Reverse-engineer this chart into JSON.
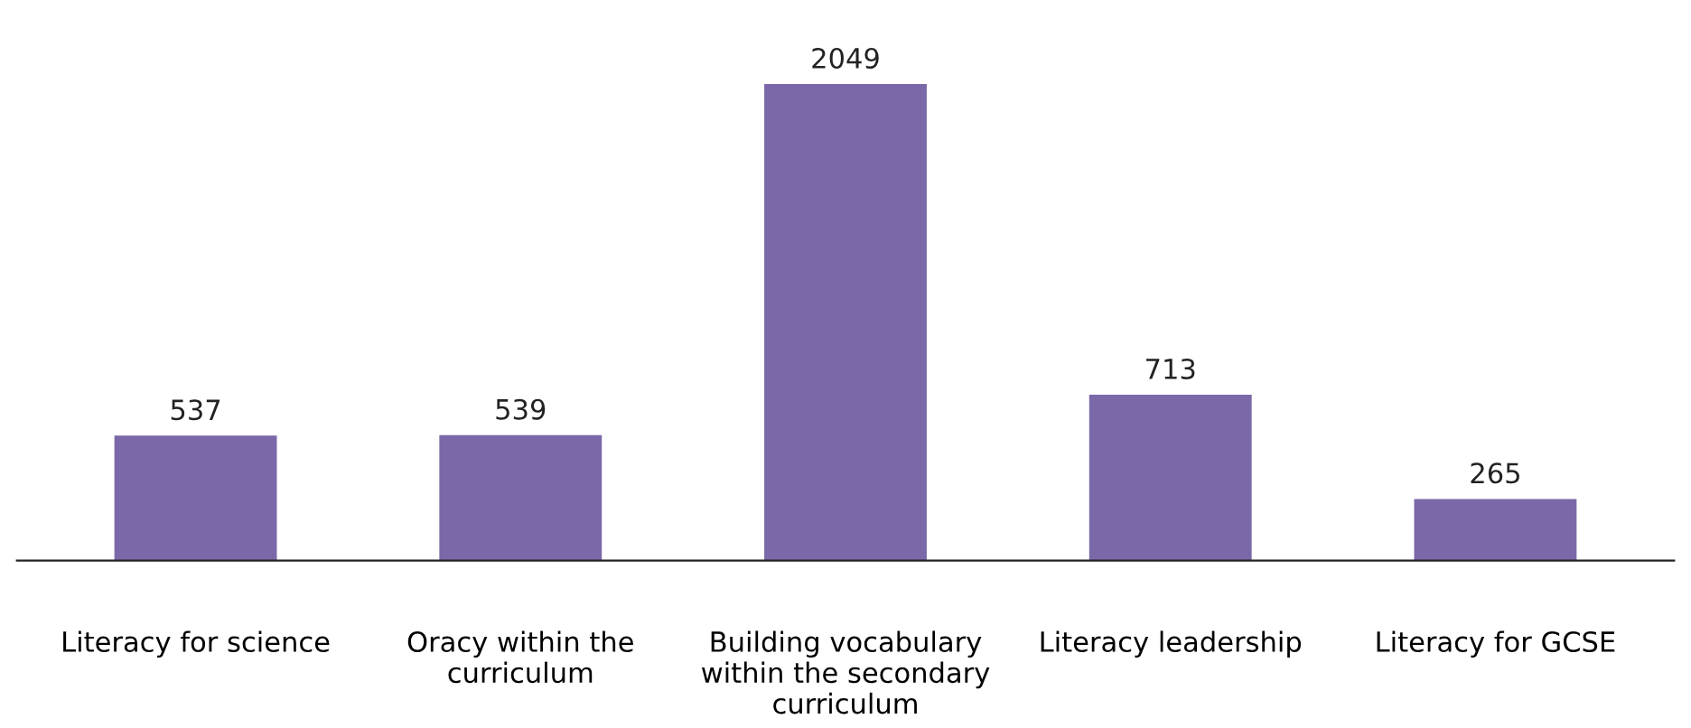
{
  "chart_data": {
    "type": "bar",
    "categories": [
      "Literacy for science",
      "Oracy within the curriculum",
      "Building vocabulary within the secondary curriculum",
      "Literacy leadership",
      "Literacy for GCSE"
    ],
    "values": [
      537,
      539,
      2049,
      713,
      265
    ],
    "color": "#7b68a8",
    "data_labels": true
  }
}
